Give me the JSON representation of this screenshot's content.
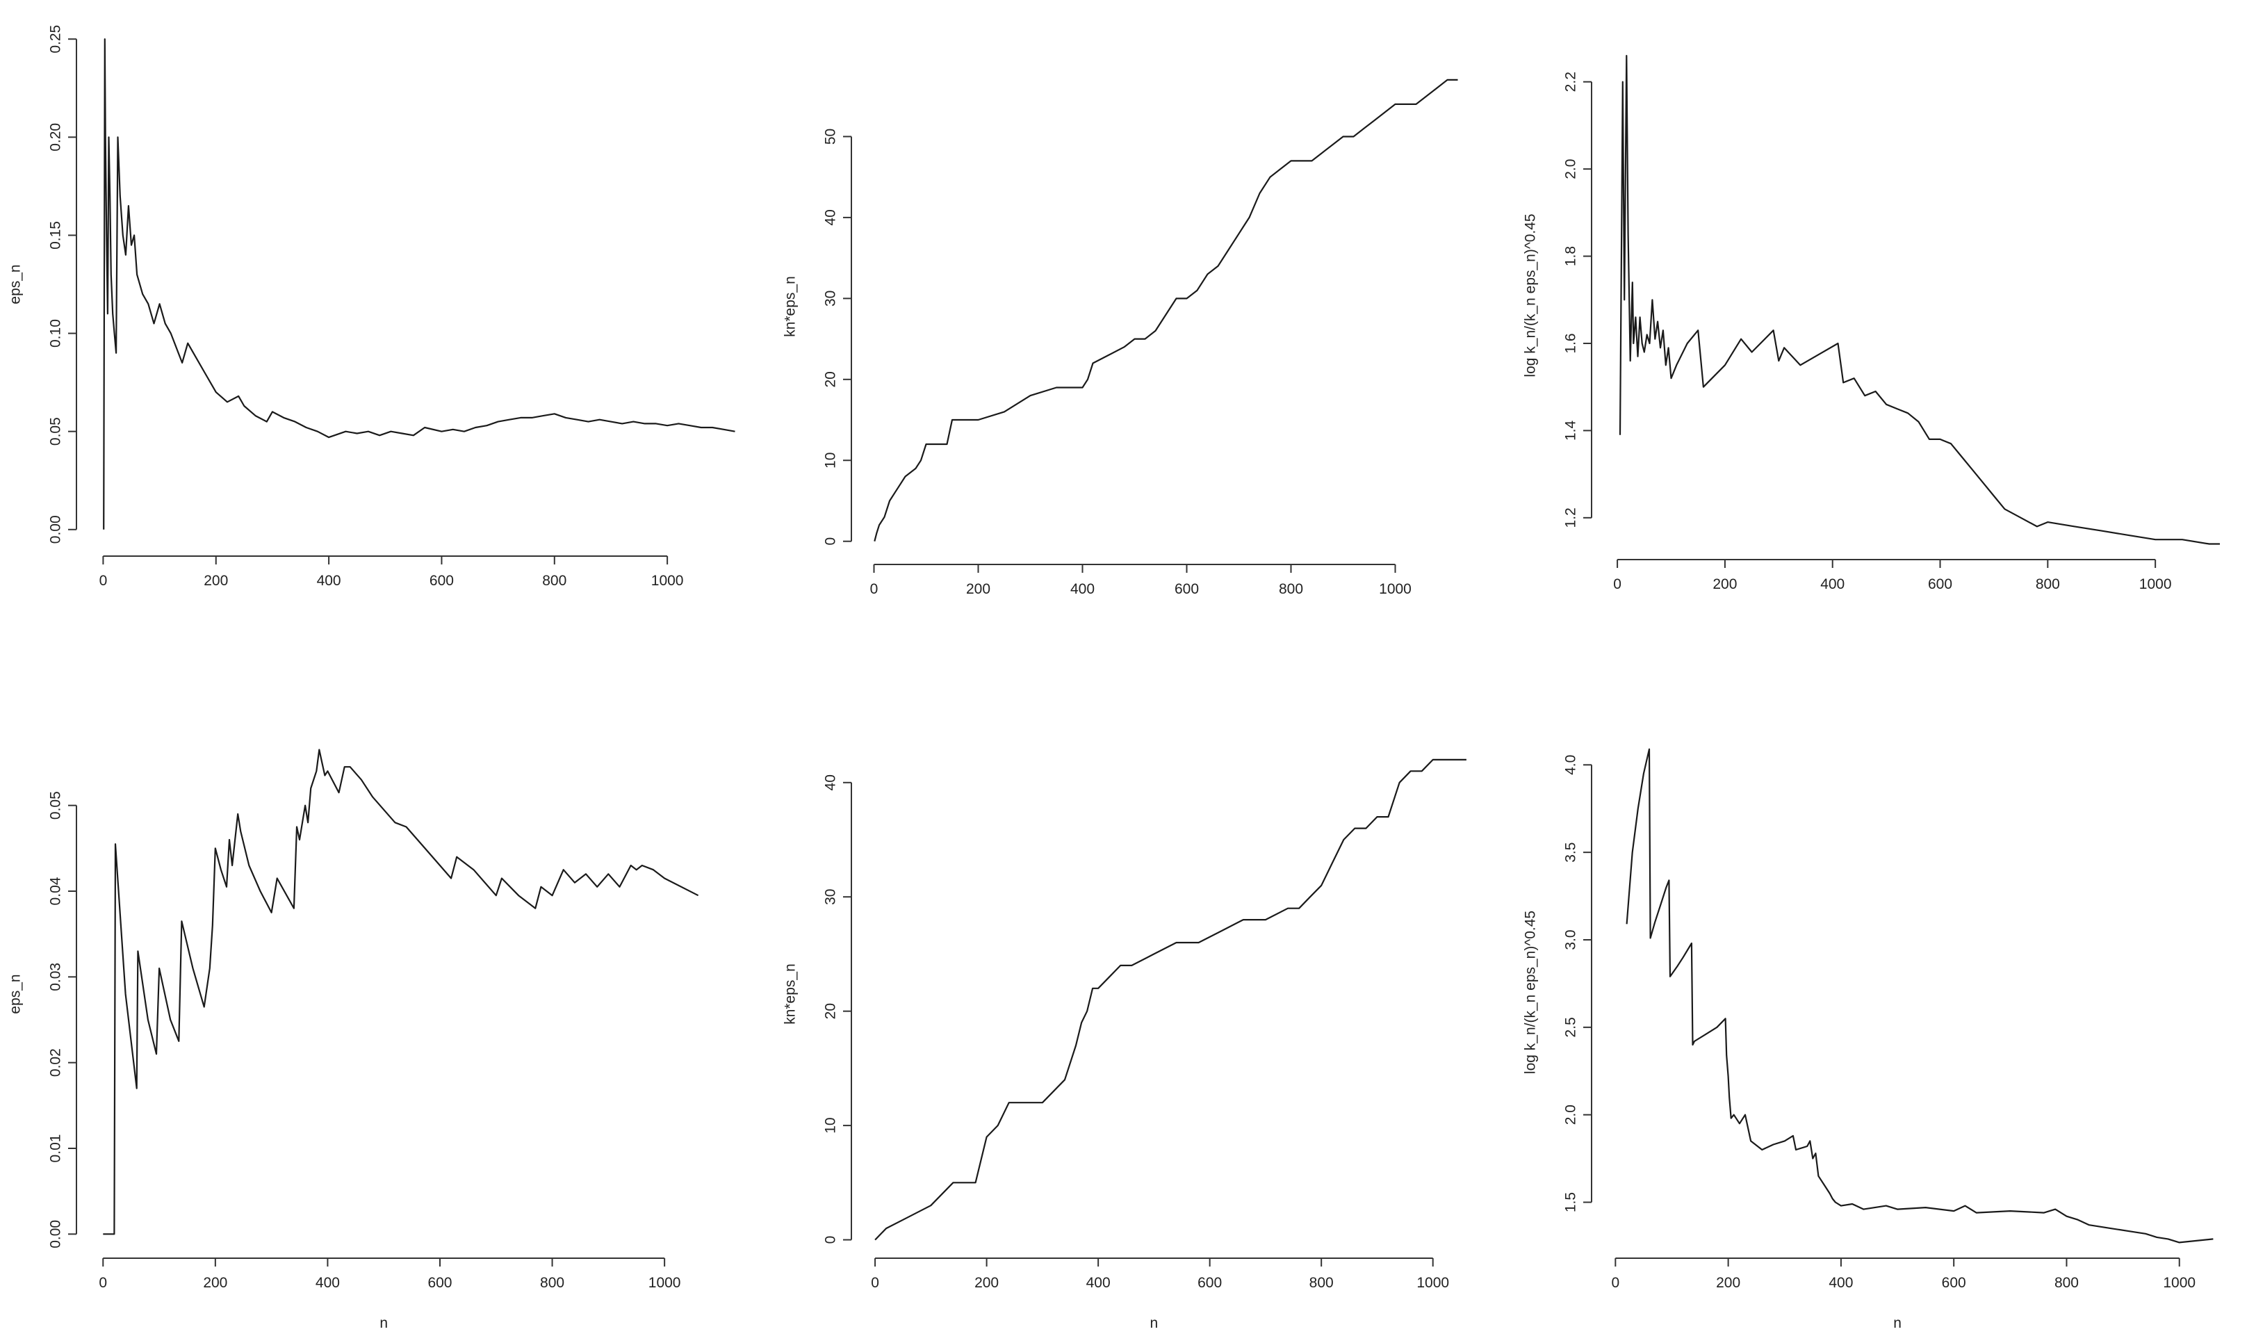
{
  "chart_data": [
    {
      "type": "line",
      "xlabel": "",
      "ylabel": "eps_n",
      "xlim": [
        -35,
        1160
      ],
      "ylim": [
        -0.01,
        0.26
      ],
      "xticks": [
        0,
        200,
        400,
        600,
        800,
        1000
      ],
      "yticks": [
        0.0,
        0.05,
        0.1,
        0.15,
        0.2,
        0.25
      ],
      "ytick_labels": [
        "0.00",
        "0.05",
        "0.10",
        "0.15",
        "0.20",
        "0.25"
      ],
      "series": [
        {
          "x": [
            1,
            3,
            4,
            6,
            8,
            10,
            12,
            14,
            17,
            20,
            23,
            26,
            30,
            35,
            40,
            45,
            50,
            55,
            60,
            70,
            80,
            90,
            100,
            110,
            120,
            140,
            150,
            160,
            180,
            200,
            220,
            240,
            250,
            270,
            290,
            300,
            320,
            340,
            360,
            380,
            400,
            410,
            430,
            450,
            470,
            490,
            510,
            530,
            550,
            570,
            600,
            620,
            640,
            660,
            680,
            700,
            720,
            740,
            760,
            780,
            800,
            820,
            840,
            860,
            880,
            900,
            920,
            940,
            960,
            980,
            1000,
            1020,
            1040,
            1060,
            1080,
            1100,
            1120
          ],
          "y": [
            0.0,
            0.25,
            0.2,
            0.15,
            0.11,
            0.2,
            0.17,
            0.13,
            0.11,
            0.1,
            0.09,
            0.2,
            0.17,
            0.15,
            0.14,
            0.165,
            0.145,
            0.15,
            0.13,
            0.12,
            0.115,
            0.105,
            0.115,
            0.105,
            0.1,
            0.085,
            0.095,
            0.09,
            0.08,
            0.07,
            0.065,
            0.068,
            0.063,
            0.058,
            0.055,
            0.06,
            0.057,
            0.055,
            0.052,
            0.05,
            0.047,
            0.048,
            0.05,
            0.049,
            0.05,
            0.048,
            0.05,
            0.049,
            0.048,
            0.052,
            0.05,
            0.051,
            0.05,
            0.052,
            0.053,
            0.055,
            0.056,
            0.057,
            0.057,
            0.058,
            0.059,
            0.057,
            0.056,
            0.055,
            0.056,
            0.055,
            0.054,
            0.055,
            0.054,
            0.054,
            0.053,
            0.054,
            0.053,
            0.052,
            0.052,
            0.051,
            0.05
          ]
        }
      ]
    },
    {
      "type": "line",
      "xlabel": "",
      "ylabel": "kn*eps_n",
      "xlim": [
        -30,
        1170
      ],
      "ylim": [
        -2,
        60
      ],
      "xticks": [
        0,
        200,
        400,
        600,
        800,
        1000
      ],
      "yticks": [
        0,
        10,
        20,
        30,
        40,
        50
      ],
      "ytick_labels": [
        "0",
        "10",
        "20",
        "30",
        "40",
        "50"
      ],
      "series": [
        {
          "x": [
            1,
            5,
            10,
            20,
            30,
            40,
            50,
            60,
            80,
            90,
            100,
            140,
            150,
            200,
            250,
            300,
            350,
            400,
            410,
            420,
            450,
            480,
            500,
            520,
            540,
            560,
            580,
            600,
            620,
            640,
            660,
            680,
            700,
            710,
            720,
            740,
            760,
            780,
            800,
            840,
            860,
            880,
            900,
            920,
            940,
            960,
            1000,
            1040,
            1060,
            1080,
            1100,
            1120
          ],
          "y": [
            0,
            1,
            2,
            3,
            5,
            6,
            7,
            8,
            9,
            10,
            12,
            12,
            15,
            15,
            16,
            18,
            19,
            19,
            20,
            22,
            23,
            24,
            25,
            25,
            26,
            28,
            30,
            30,
            31,
            33,
            34,
            36,
            38,
            39,
            40,
            43,
            45,
            46,
            47,
            47,
            48,
            49,
            50,
            50,
            51,
            52,
            54,
            54,
            55,
            56,
            57,
            57
          ]
        }
      ]
    },
    {
      "type": "line",
      "xlabel": "",
      "ylabel": "log k_n/(k_n eps_n)^0.45",
      "xlim": [
        -35,
        1160
      ],
      "ylim": [
        1.12,
        2.3
      ],
      "xticks": [
        0,
        200,
        400,
        600,
        800,
        1000
      ],
      "yticks": [
        1.2,
        1.4,
        1.6,
        1.8,
        2.0,
        2.2
      ],
      "ytick_labels": [
        "1.2",
        "1.4",
        "1.6",
        "1.8",
        "2.0",
        "2.2"
      ],
      "series": [
        {
          "x": [
            5,
            10,
            13,
            17,
            20,
            24,
            26,
            28,
            30,
            34,
            38,
            42,
            46,
            50,
            55,
            60,
            65,
            70,
            75,
            80,
            85,
            90,
            95,
            100,
            110,
            130,
            150,
            160,
            200,
            230,
            250,
            290,
            300,
            310,
            340,
            410,
            420,
            440,
            460,
            480,
            500,
            520,
            540,
            560,
            580,
            600,
            620,
            640,
            660,
            680,
            700,
            720,
            750,
            780,
            800,
            850,
            900,
            950,
            1000,
            1050,
            1100,
            1120
          ],
          "y": [
            1.39,
            2.2,
            1.7,
            2.26,
            1.85,
            1.56,
            1.65,
            1.74,
            1.6,
            1.66,
            1.57,
            1.66,
            1.6,
            1.58,
            1.62,
            1.6,
            1.7,
            1.61,
            1.65,
            1.59,
            1.63,
            1.55,
            1.59,
            1.52,
            1.55,
            1.6,
            1.63,
            1.5,
            1.55,
            1.61,
            1.58,
            1.63,
            1.56,
            1.59,
            1.55,
            1.6,
            1.51,
            1.52,
            1.48,
            1.49,
            1.46,
            1.45,
            1.44,
            1.42,
            1.38,
            1.38,
            1.37,
            1.34,
            1.31,
            1.28,
            1.25,
            1.22,
            1.2,
            1.18,
            1.19,
            1.18,
            1.17,
            1.16,
            1.15,
            1.15,
            1.14,
            1.14
          ]
        }
      ]
    },
    {
      "type": "line",
      "xlabel": "n",
      "ylabel": "eps_n",
      "xlim": [
        -35,
        1110
      ],
      "ylim": [
        -0.002,
        0.058
      ],
      "xticks": [
        0,
        200,
        400,
        600,
        800,
        1000
      ],
      "yticks": [
        0.0,
        0.01,
        0.02,
        0.03,
        0.04,
        0.05
      ],
      "ytick_labels": [
        "0.00",
        "0.01",
        "0.02",
        "0.03",
        "0.04",
        "0.05"
      ],
      "series": [
        {
          "x": [
            0,
            20,
            22,
            40,
            60,
            62,
            80,
            95,
            100,
            120,
            135,
            140,
            160,
            180,
            190,
            195,
            200,
            210,
            220,
            225,
            230,
            240,
            245,
            260,
            280,
            300,
            310,
            340,
            345,
            350,
            360,
            365,
            370,
            380,
            385,
            390,
            395,
            400,
            420,
            430,
            440,
            460,
            480,
            500,
            520,
            540,
            560,
            600,
            620,
            630,
            660,
            700,
            710,
            740,
            770,
            780,
            800,
            820,
            840,
            860,
            880,
            900,
            920,
            940,
            950,
            960,
            980,
            1000,
            1060
          ],
          "y": [
            0.0,
            0.0,
            0.0455,
            0.028,
            0.017,
            0.033,
            0.025,
            0.021,
            0.031,
            0.025,
            0.0225,
            0.0365,
            0.031,
            0.0265,
            0.031,
            0.036,
            0.045,
            0.0425,
            0.0405,
            0.046,
            0.043,
            0.049,
            0.047,
            0.043,
            0.04,
            0.0375,
            0.0415,
            0.038,
            0.0475,
            0.046,
            0.05,
            0.048,
            0.052,
            0.054,
            0.0565,
            0.055,
            0.0535,
            0.054,
            0.0515,
            0.0545,
            0.0545,
            0.053,
            0.051,
            0.0495,
            0.048,
            0.0475,
            0.046,
            0.043,
            0.0415,
            0.044,
            0.0425,
            0.0395,
            0.0415,
            0.0395,
            0.038,
            0.0405,
            0.0395,
            0.0425,
            0.041,
            0.042,
            0.0405,
            0.042,
            0.0405,
            0.043,
            0.0425,
            0.043,
            0.0425,
            0.0415,
            0.0395
          ]
        }
      ]
    },
    {
      "type": "line",
      "xlabel": "n",
      "ylabel": "kn*eps_n",
      "xlim": [
        -30,
        1110
      ],
      "ylim": [
        -1,
        44
      ],
      "xticks": [
        0,
        200,
        400,
        600,
        800,
        1000
      ],
      "yticks": [
        0,
        10,
        20,
        30,
        40
      ],
      "ytick_labels": [
        "0",
        "10",
        "20",
        "30",
        "40"
      ],
      "series": [
        {
          "x": [
            0,
            20,
            60,
            100,
            140,
            180,
            190,
            200,
            220,
            240,
            260,
            300,
            320,
            340,
            360,
            370,
            380,
            390,
            400,
            420,
            440,
            460,
            500,
            540,
            580,
            620,
            660,
            700,
            740,
            760,
            780,
            800,
            820,
            840,
            860,
            880,
            900,
            920,
            940,
            960,
            980,
            1000,
            1060
          ],
          "y": [
            0,
            1,
            2,
            3,
            5,
            5,
            7,
            9,
            10,
            12,
            12,
            12,
            13,
            14,
            17,
            19,
            20,
            22,
            22,
            23,
            24,
            24,
            25,
            26,
            26,
            27,
            28,
            28,
            29,
            29,
            30,
            31,
            33,
            35,
            36,
            36,
            37,
            37,
            40,
            41,
            41,
            42,
            42
          ]
        }
      ]
    },
    {
      "type": "line",
      "xlabel": "n",
      "ylabel": "log k_n/(k_n eps_n)^0.45",
      "xlim": [
        -30,
        1110
      ],
      "ylim": [
        1.22,
        4.18
      ],
      "xticks": [
        0,
        200,
        400,
        600,
        800,
        1000
      ],
      "yticks": [
        1.5,
        2.0,
        2.5,
        3.0,
        3.5,
        4.0
      ],
      "ytick_labels": [
        "1.5",
        "2.0",
        "2.5",
        "3.0",
        "3.5",
        "4.0"
      ],
      "series": [
        {
          "x": [
            20,
            30,
            40,
            50,
            60,
            62,
            70,
            80,
            90,
            95,
            97,
            110,
            120,
            135,
            137,
            140,
            160,
            180,
            195,
            197,
            200,
            202,
            205,
            210,
            220,
            230,
            240,
            260,
            280,
            300,
            315,
            320,
            340,
            345,
            350,
            355,
            360,
            370,
            380,
            385,
            390,
            400,
            420,
            440,
            460,
            480,
            500,
            550,
            600,
            620,
            640,
            700,
            760,
            780,
            800,
            820,
            840,
            880,
            920,
            940,
            960,
            980,
            1000,
            1060
          ],
          "y": [
            3.09,
            3.5,
            3.75,
            3.95,
            4.09,
            3.01,
            3.1,
            3.2,
            3.3,
            3.34,
            2.79,
            2.85,
            2.9,
            2.98,
            2.4,
            2.42,
            2.46,
            2.5,
            2.55,
            2.34,
            2.22,
            2.1,
            1.98,
            2.0,
            1.95,
            2.0,
            1.85,
            1.8,
            1.83,
            1.85,
            1.88,
            1.8,
            1.82,
            1.85,
            1.75,
            1.78,
            1.65,
            1.6,
            1.55,
            1.52,
            1.5,
            1.48,
            1.49,
            1.46,
            1.47,
            1.48,
            1.46,
            1.47,
            1.45,
            1.48,
            1.44,
            1.45,
            1.44,
            1.46,
            1.42,
            1.4,
            1.37,
            1.35,
            1.33,
            1.32,
            1.3,
            1.29,
            1.27,
            1.29
          ]
        }
      ]
    }
  ]
}
